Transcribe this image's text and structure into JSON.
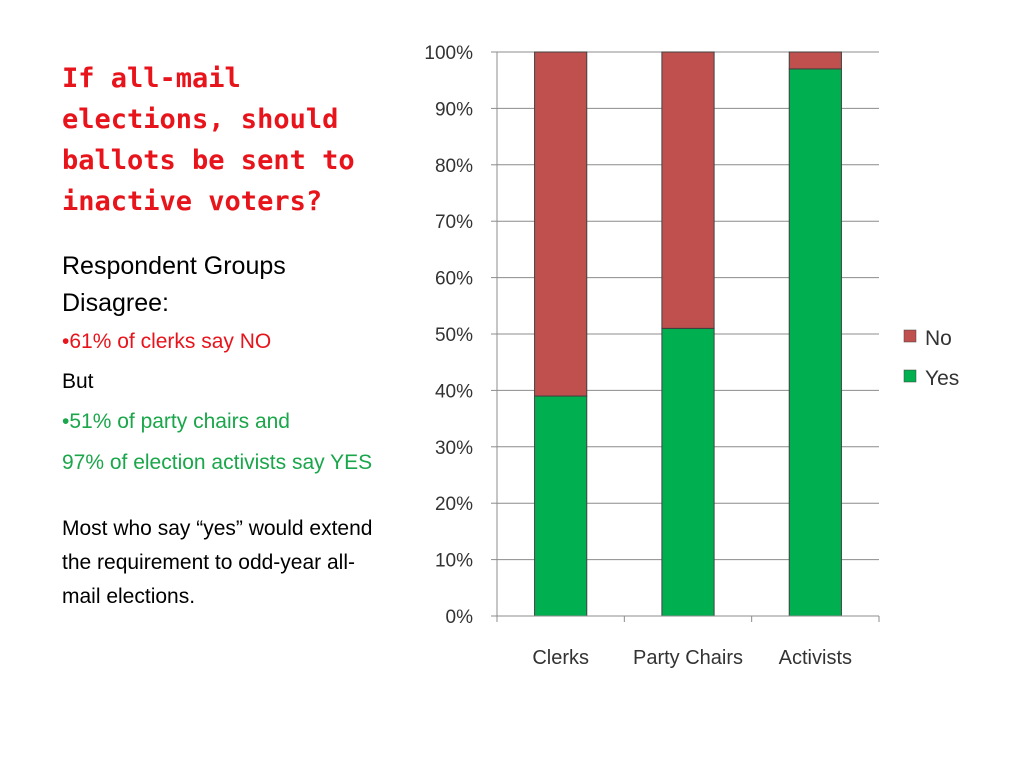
{
  "slide": {
    "title": "If all-mail elections, should ballots be sent to inactive voters?",
    "heading": "Respondent Groups Disagree:",
    "bullet_1": "•61% of clerks say NO",
    "connector": "But",
    "bullet_2": "•51% of party chairs  and",
    "bullet_2_continuation": "97% of election activists say YES",
    "closing": "Most who say “yes” would extend the requirement to odd-year all-mail elections."
  },
  "colors": {
    "title": "#e8141b",
    "red_text": "#e8141b",
    "green_text": "#1aa64a",
    "no_series": "#c0504d",
    "yes_series": "#00b050"
  },
  "chart_data": {
    "type": "bar",
    "stacked": true,
    "categories": [
      "Clerks",
      "Party Chairs",
      "Activists"
    ],
    "series": [
      {
        "name": "Yes",
        "values": [
          39,
          51,
          97
        ],
        "color": "#00b050"
      },
      {
        "name": "No",
        "values": [
          61,
          49,
          3
        ],
        "color": "#c0504d"
      }
    ],
    "ylim": [
      0,
      100
    ],
    "y_ticks": [
      "0%",
      "10%",
      "20%",
      "30%",
      "40%",
      "50%",
      "60%",
      "70%",
      "80%",
      "90%",
      "100%"
    ],
    "legend": {
      "position": "right",
      "entries": [
        "No",
        "Yes"
      ]
    },
    "grid": true
  }
}
